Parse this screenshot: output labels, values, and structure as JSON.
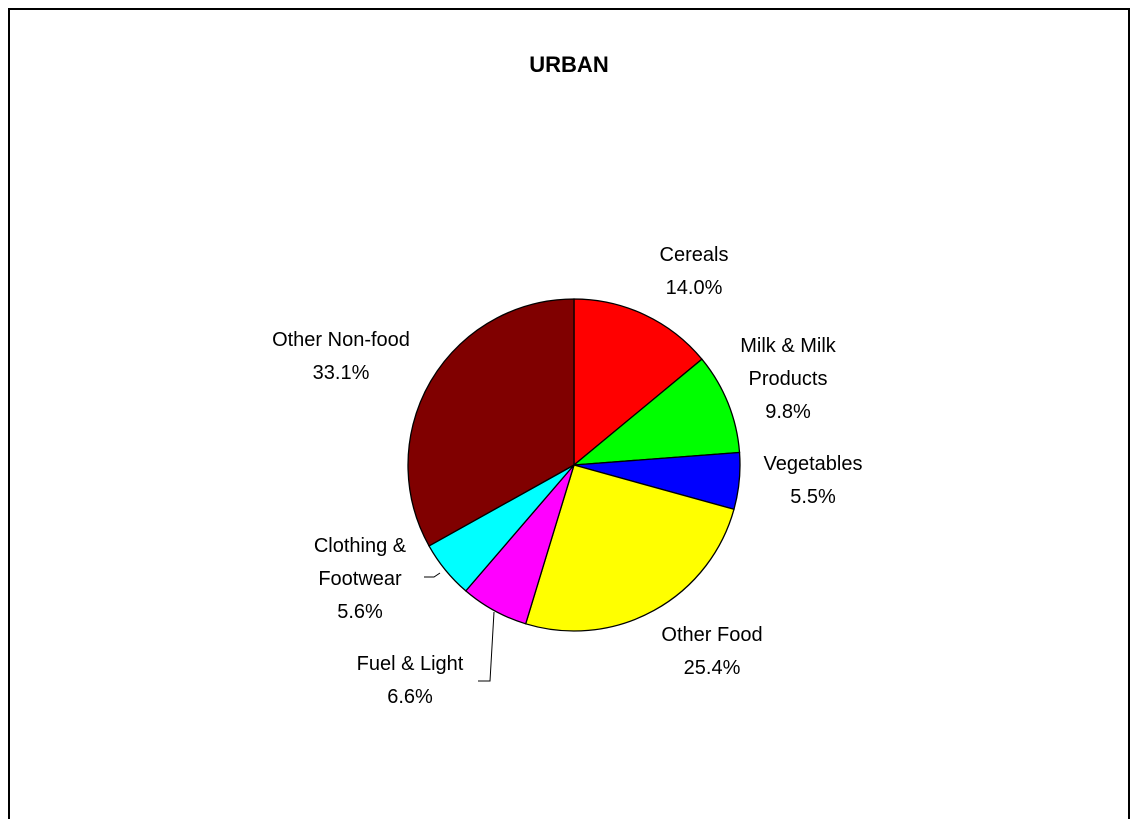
{
  "chart_data": {
    "type": "pie",
    "title": "URBAN",
    "categories": [
      "Cereals",
      "Milk & Milk Products",
      "Vegetables",
      "Other Food",
      "Fuel & Light",
      "Clothing & Footwear",
      "Other Non-food"
    ],
    "values": [
      14.0,
      9.8,
      5.5,
      25.4,
      6.6,
      5.6,
      33.1
    ],
    "value_labels": [
      "14.0%",
      "9.8%",
      "5.5%",
      "25.4%",
      "6.6%",
      "5.6%",
      "33.1%"
    ],
    "colors": [
      "#ff0000",
      "#00ff00",
      "#0000ff",
      "#ffff00",
      "#ff00ff",
      "#00ffff",
      "#800000"
    ]
  }
}
